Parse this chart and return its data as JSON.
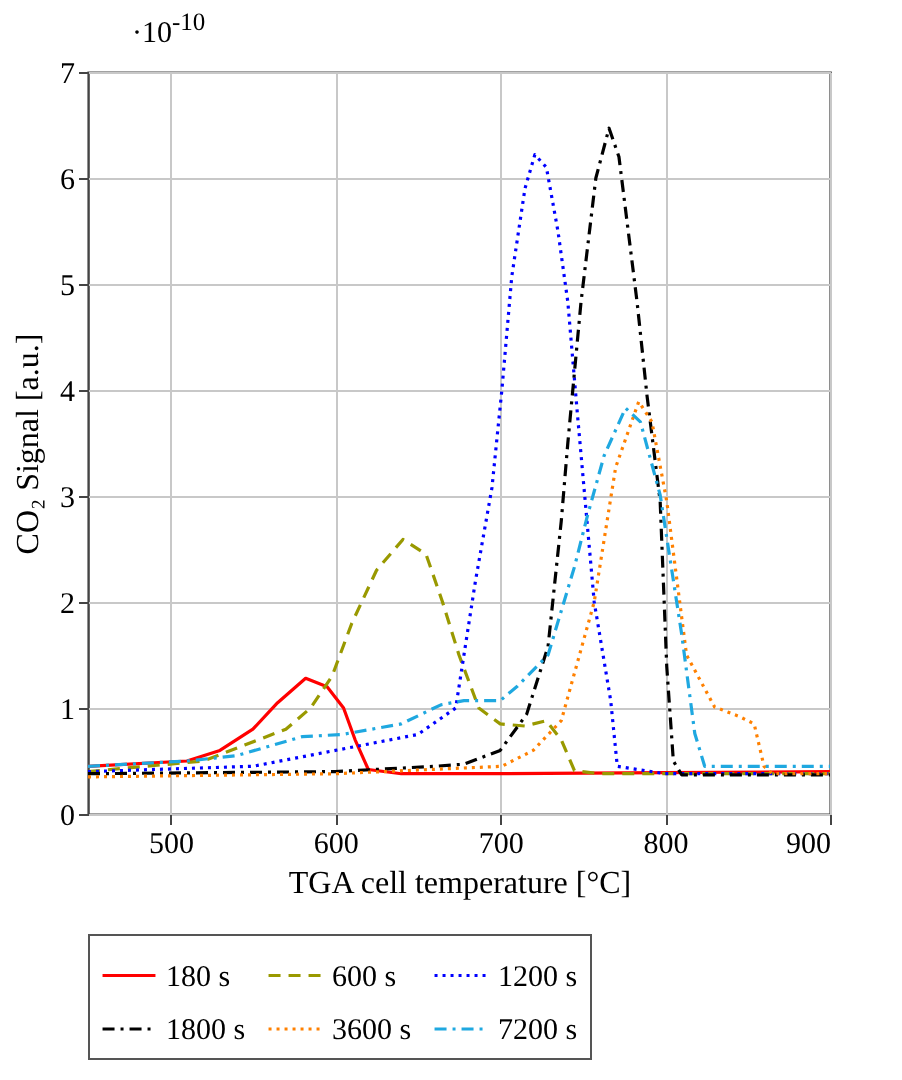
{
  "chart_data": {
    "type": "line",
    "xlabel": "TGA cell temperature [°C]",
    "ylabel": "CO₂ Signal [a.u.]",
    "annotations": [
      "·10$^{-10}$"
    ],
    "xlim": [
      450,
      900
    ],
    "xticks": [
      500,
      600,
      700,
      800,
      900
    ],
    "ylim": [
      0,
      7
    ],
    "yticks": [
      0,
      1,
      2,
      3,
      4,
      5,
      6,
      7
    ],
    "grid": true,
    "legend": "bottom",
    "marker": "none",
    "series": [
      {
        "name": "180 s",
        "color": "#ff0000",
        "line_style": "solid",
        "x": [
          450,
          510,
          530,
          550,
          565,
          582,
          595,
          605,
          612,
          620,
          640,
          700,
          800,
          900
        ],
        "values": [
          0.45,
          0.5,
          0.6,
          0.8,
          1.05,
          1.28,
          1.2,
          1.0,
          0.7,
          0.42,
          0.38,
          0.38,
          0.39,
          0.4
        ]
      },
      {
        "name": "600 s",
        "color": "#999900",
        "line_style": "dashed",
        "x": [
          450,
          520,
          545,
          570,
          585,
          598,
          610,
          625,
          641,
          655,
          665,
          675,
          687,
          700,
          715,
          728,
          737,
          745,
          760,
          900
        ],
        "values": [
          0.4,
          0.5,
          0.65,
          0.8,
          1.0,
          1.3,
          1.8,
          2.3,
          2.59,
          2.45,
          2.0,
          1.5,
          1.0,
          0.85,
          0.83,
          0.88,
          0.7,
          0.41,
          0.38,
          0.38
        ]
      },
      {
        "name": "1200 s",
        "color": "#0000ff",
        "line_style": "dotted",
        "x": [
          450,
          550,
          600,
          650,
          673,
          678,
          685,
          695,
          701,
          707,
          715,
          721,
          728,
          735,
          741,
          747,
          757,
          767,
          771,
          800,
          900
        ],
        "values": [
          0.4,
          0.45,
          0.6,
          0.75,
          1.0,
          1.5,
          2.2,
          3.08,
          4.0,
          5.07,
          5.9,
          6.22,
          6.1,
          5.5,
          4.83,
          3.74,
          2.0,
          1.07,
          0.45,
          0.38,
          0.38
        ]
      },
      {
        "name": "1800 s",
        "color": "#000000",
        "line_style": "dashdot",
        "x": [
          450,
          600,
          660,
          678,
          700,
          716,
          729,
          737,
          741,
          749,
          758,
          766,
          772,
          783,
          789,
          797,
          801,
          805,
          810,
          900
        ],
        "values": [
          0.38,
          0.4,
          0.45,
          0.47,
          0.6,
          0.94,
          1.58,
          2.76,
          3.5,
          4.83,
          6.0,
          6.47,
          6.2,
          4.83,
          3.95,
          2.95,
          1.39,
          0.5,
          0.37,
          0.37
        ]
      },
      {
        "name": "3600 s",
        "color": "#ff8000",
        "line_style": "dotted",
        "x": [
          450,
          600,
          701,
          720,
          737,
          757,
          770,
          784,
          792,
          801,
          813,
          830,
          845,
          854,
          860,
          865,
          900
        ],
        "values": [
          0.35,
          0.38,
          0.45,
          0.6,
          0.88,
          2.0,
          3.27,
          3.89,
          3.7,
          2.95,
          1.5,
          1.01,
          0.92,
          0.85,
          0.45,
          0.38,
          0.38
        ]
      },
      {
        "name": "7200 s",
        "color": "#1fa8e0",
        "line_style": "dashdot",
        "x": [
          450,
          510,
          540,
          580,
          604,
          640,
          664,
          678,
          700,
          710,
          729,
          745,
          753,
          763,
          776,
          785,
          797,
          810,
          818,
          824,
          900
        ],
        "values": [
          0.45,
          0.5,
          0.55,
          0.73,
          0.75,
          0.85,
          1.03,
          1.07,
          1.07,
          1.2,
          1.5,
          2.33,
          2.82,
          3.38,
          3.83,
          3.7,
          3.01,
          1.7,
          0.76,
          0.45,
          0.45
        ]
      }
    ]
  }
}
